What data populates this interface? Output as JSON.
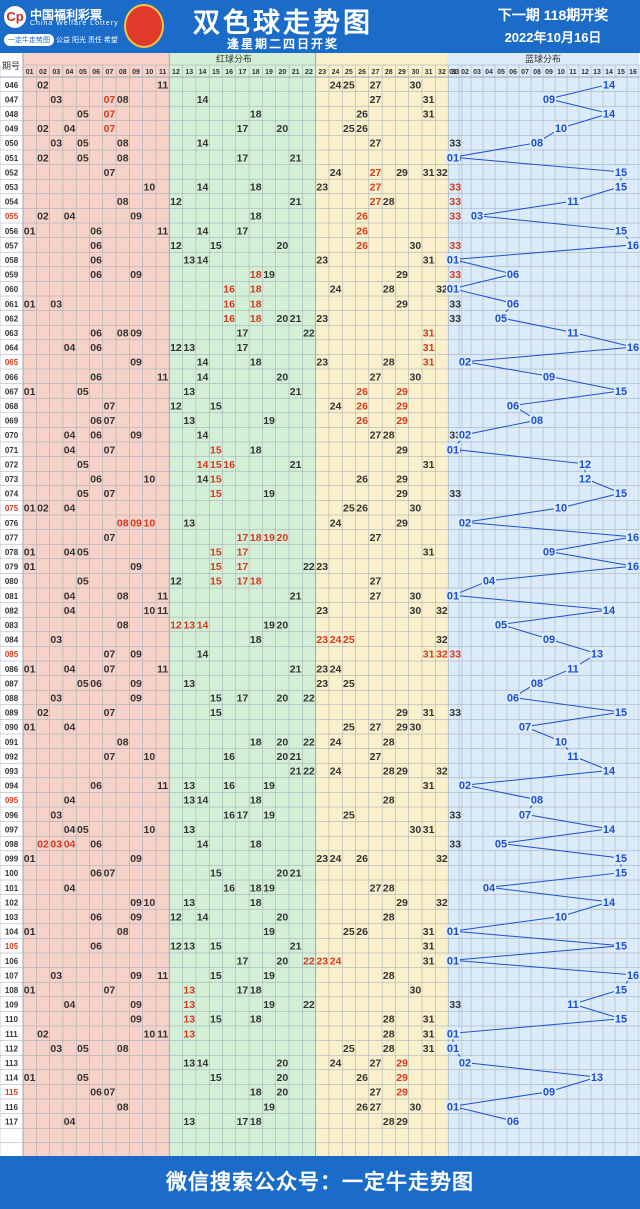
{
  "header": {
    "brand": "中国福利彩票",
    "brand_en": "China Welfare Lottery",
    "badge": "一定牛走势图",
    "slogan": "公益 阳光 责任 希望",
    "title": "双色球走势图",
    "subtitle": "逢星期二四日开奖",
    "next_draw": "下一期 118期开奖",
    "next_date": "2022年10月16日"
  },
  "footer": {
    "text": "微信搜索公众号：一定牛走势图"
  },
  "chart_data": {
    "type": "table",
    "column_header": "期号",
    "red_zone_label": "红球分布",
    "blue_zone_label": "蓝球分布",
    "red_numbers": [
      "01",
      "02",
      "03",
      "04",
      "05",
      "06",
      "07",
      "08",
      "09",
      "10",
      "11",
      "12",
      "13",
      "14",
      "15",
      "16",
      "17",
      "18",
      "19",
      "20",
      "21",
      "22",
      "23",
      "24",
      "25",
      "26",
      "27",
      "28",
      "29",
      "30",
      "31",
      "32",
      "33"
    ],
    "blue_numbers": [
      "01",
      "02",
      "03",
      "04",
      "05",
      "06",
      "07",
      "08",
      "09",
      "10",
      "11",
      "12",
      "13",
      "14",
      "15",
      "16"
    ],
    "colors": {
      "zone1": "#f7d2c8",
      "zone2": "#d3efd6",
      "zone3": "#fbf0cc",
      "blue_zone": "#dcebfa",
      "red_ball": "#333333",
      "highlight": "#d6391e",
      "blue_ball": "#1d4fd6",
      "line": "#1d4fd6",
      "grid": "#9aa8b5"
    },
    "rows": [
      {
        "issue": "046",
        "red": [
          2,
          11,
          24,
          25,
          27,
          30
        ],
        "blue": 14
      },
      {
        "issue": "047",
        "red": [
          3,
          7,
          8,
          14,
          27,
          31
        ],
        "blue": 9
      },
      {
        "issue": "048",
        "red": [
          5,
          7,
          18,
          26,
          31
        ],
        "blue": 14
      },
      {
        "issue": "049",
        "red": [
          2,
          4,
          7,
          17,
          20,
          25,
          26
        ],
        "blue": 10
      },
      {
        "issue": "050",
        "red": [
          3,
          5,
          8,
          14,
          27,
          33
        ],
        "blue": 8
      },
      {
        "issue": "051",
        "red": [
          2,
          5,
          8,
          17,
          21,
          33
        ],
        "blue": 1
      },
      {
        "issue": "052",
        "red": [
          7,
          24,
          27,
          29,
          31,
          32
        ],
        "blue": 15
      },
      {
        "issue": "053",
        "red": [
          10,
          14,
          18,
          23,
          27,
          33
        ],
        "blue": 15
      },
      {
        "issue": "054",
        "red": [
          8,
          12,
          21,
          27,
          28,
          33
        ],
        "blue": 11
      },
      {
        "issue": "055",
        "red": [
          2,
          4,
          9,
          18,
          26,
          33
        ],
        "blue": 3
      },
      {
        "issue": "056",
        "red": [
          1,
          6,
          11,
          14,
          17,
          26
        ],
        "blue": 15
      },
      {
        "issue": "057",
        "red": [
          6,
          12,
          15,
          20,
          26,
          30,
          33
        ],
        "blue": 16
      },
      {
        "issue": "058",
        "red": [
          6,
          13,
          14,
          23,
          31,
          33
        ],
        "blue": 1
      },
      {
        "issue": "059",
        "red": [
          6,
          9,
          18,
          19,
          29,
          33
        ],
        "blue": 6
      },
      {
        "issue": "060",
        "red": [
          16,
          18,
          24,
          28,
          32
        ],
        "blue": 1
      },
      {
        "issue": "061",
        "red": [
          1,
          3,
          16,
          18,
          29,
          33
        ],
        "blue": 6
      },
      {
        "issue": "062",
        "red": [
          16,
          18,
          20,
          21,
          23,
          33
        ],
        "blue": 5
      },
      {
        "issue": "063",
        "red": [
          6,
          8,
          9,
          17,
          22,
          31
        ],
        "blue": 11
      },
      {
        "issue": "064",
        "red": [
          4,
          6,
          12,
          13,
          17,
          31
        ],
        "blue": 16
      },
      {
        "issue": "065",
        "red": [
          9,
          14,
          18,
          23,
          28,
          31
        ],
        "blue": 2
      },
      {
        "issue": "066",
        "red": [
          6,
          11,
          14,
          20,
          27,
          30
        ],
        "blue": 9
      },
      {
        "issue": "067",
        "red": [
          1,
          5,
          13,
          21,
          26,
          29
        ],
        "blue": 15
      },
      {
        "issue": "068",
        "red": [
          7,
          12,
          15,
          24,
          26,
          29
        ],
        "blue": 6
      },
      {
        "issue": "069",
        "red": [
          6,
          7,
          13,
          19,
          26,
          29
        ],
        "blue": 8
      },
      {
        "issue": "070",
        "red": [
          4,
          6,
          9,
          14,
          27,
          28,
          33
        ],
        "blue": 2
      },
      {
        "issue": "071",
        "red": [
          4,
          7,
          15,
          18,
          29,
          33
        ],
        "blue": 1
      },
      {
        "issue": "072",
        "red": [
          5,
          14,
          15,
          16,
          21,
          31
        ],
        "blue": 12
      },
      {
        "issue": "073",
        "red": [
          6,
          10,
          14,
          15,
          26,
          29
        ],
        "blue": 12
      },
      {
        "issue": "074",
        "red": [
          5,
          7,
          15,
          19,
          29,
          33
        ],
        "blue": 15
      },
      {
        "issue": "075",
        "red": [
          1,
          2,
          4,
          25,
          26,
          30
        ],
        "blue": 10
      },
      {
        "issue": "076",
        "red": [
          8,
          9,
          10,
          13,
          24,
          29
        ],
        "blue": 2
      },
      {
        "issue": "077",
        "red": [
          7,
          17,
          18,
          19,
          20,
          27
        ],
        "blue": 16
      },
      {
        "issue": "078",
        "red": [
          1,
          4,
          5,
          15,
          17,
          31
        ],
        "blue": 9
      },
      {
        "issue": "079",
        "red": [
          1,
          9,
          15,
          17,
          22,
          23
        ],
        "blue": 16
      },
      {
        "issue": "080",
        "red": [
          5,
          12,
          15,
          17,
          18,
          27
        ],
        "blue": 4
      },
      {
        "issue": "081",
        "red": [
          4,
          8,
          11,
          21,
          27,
          30
        ],
        "blue": 1
      },
      {
        "issue": "082",
        "red": [
          4,
          10,
          11,
          23,
          30,
          32
        ],
        "blue": 14
      },
      {
        "issue": "083",
        "red": [
          8,
          12,
          13,
          14,
          19,
          20
        ],
        "blue": 5
      },
      {
        "issue": "084",
        "red": [
          3,
          18,
          23,
          24,
          25,
          32
        ],
        "blue": 9
      },
      {
        "issue": "085",
        "red": [
          7,
          9,
          14,
          31,
          32,
          33
        ],
        "blue": 13
      },
      {
        "issue": "086",
        "red": [
          1,
          4,
          7,
          11,
          21,
          23,
          24
        ],
        "blue": 11
      },
      {
        "issue": "087",
        "red": [
          5,
          6,
          9,
          13,
          23,
          25
        ],
        "blue": 8
      },
      {
        "issue": "088",
        "red": [
          3,
          9,
          15,
          17,
          20,
          22
        ],
        "blue": 6
      },
      {
        "issue": "089",
        "red": [
          2,
          7,
          15,
          29,
          31,
          33
        ],
        "blue": 15
      },
      {
        "issue": "090",
        "red": [
          1,
          4,
          25,
          27,
          29,
          30
        ],
        "blue": 7
      },
      {
        "issue": "091",
        "red": [
          8,
          18,
          20,
          22,
          24,
          28
        ],
        "blue": 10
      },
      {
        "issue": "092",
        "red": [
          7,
          10,
          16,
          20,
          21,
          27
        ],
        "blue": 11
      },
      {
        "issue": "093",
        "red": [
          21,
          22,
          24,
          28,
          29,
          32
        ],
        "blue": 14
      },
      {
        "issue": "094",
        "red": [
          6,
          11,
          13,
          16,
          19,
          31
        ],
        "blue": 2
      },
      {
        "issue": "095",
        "red": [
          4,
          13,
          14,
          18,
          28
        ],
        "blue": 8
      },
      {
        "issue": "096",
        "red": [
          3,
          16,
          17,
          19,
          25,
          33
        ],
        "blue": 7
      },
      {
        "issue": "097",
        "red": [
          4,
          5,
          10,
          13,
          30,
          31
        ],
        "blue": 14
      },
      {
        "issue": "098",
        "red": [
          2,
          3,
          4,
          6,
          14,
          18,
          33
        ],
        "blue": 5
      },
      {
        "issue": "099",
        "red": [
          1,
          9,
          23,
          24,
          26,
          32
        ],
        "blue": 15
      },
      {
        "issue": "100",
        "red": [
          6,
          7,
          15,
          20,
          21
        ],
        "blue": 15
      },
      {
        "issue": "101",
        "red": [
          4,
          16,
          18,
          19,
          27,
          28
        ],
        "blue": 4
      },
      {
        "issue": "102",
        "red": [
          9,
          10,
          13,
          18,
          29,
          32
        ],
        "blue": 14
      },
      {
        "issue": "103",
        "red": [
          6,
          9,
          12,
          14,
          20,
          28
        ],
        "blue": 10
      },
      {
        "issue": "104",
        "red": [
          1,
          8,
          19,
          25,
          26,
          31
        ],
        "blue": 1
      },
      {
        "issue": "105",
        "red": [
          6,
          12,
          13,
          15,
          21,
          31
        ],
        "blue": 15
      },
      {
        "issue": "106",
        "red": [
          17,
          20,
          22,
          23,
          24,
          31
        ],
        "blue": 1
      },
      {
        "issue": "107",
        "red": [
          3,
          9,
          11,
          15,
          19,
          28
        ],
        "blue": 16
      },
      {
        "issue": "108",
        "red": [
          1,
          7,
          13,
          17,
          18,
          30
        ],
        "blue": 15
      },
      {
        "issue": "109",
        "red": [
          4,
          9,
          13,
          19,
          22,
          33
        ],
        "blue": 11
      },
      {
        "issue": "110",
        "red": [
          9,
          13,
          15,
          18,
          28,
          31
        ],
        "blue": 15
      },
      {
        "issue": "111",
        "red": [
          2,
          10,
          11,
          13,
          28,
          31
        ],
        "blue": 1
      },
      {
        "issue": "112",
        "red": [
          3,
          5,
          8,
          25,
          28,
          31
        ],
        "blue": 1
      },
      {
        "issue": "113",
        "red": [
          13,
          14,
          20,
          24,
          27,
          29
        ],
        "blue": 2
      },
      {
        "issue": "114",
        "red": [
          1,
          5,
          15,
          20,
          26,
          29
        ],
        "blue": 13
      },
      {
        "issue": "115",
        "red": [
          6,
          7,
          18,
          20,
          27,
          29
        ],
        "blue": 9
      },
      {
        "issue": "116",
        "red": [
          8,
          19,
          26,
          27,
          30,
          33
        ],
        "blue": 1
      },
      {
        "issue": "117",
        "red": [
          4,
          13,
          17,
          18,
          28,
          29
        ],
        "blue": 6
      }
    ],
    "highlighted_red": {
      "047": [
        7
      ],
      "048": [
        7
      ],
      "049": [
        7
      ],
      "052": [
        27
      ],
      "053": [
        27,
        33
      ],
      "054": [
        27,
        33
      ],
      "055": [
        26,
        33
      ],
      "056": [
        26
      ],
      "057": [
        26,
        33
      ],
      "058": [
        33
      ],
      "059": [
        18,
        33
      ],
      "060": [
        16,
        18
      ],
      "061": [
        16,
        18
      ],
      "062": [
        16,
        18
      ],
      "063": [
        31
      ],
      "064": [
        31
      ],
      "065": [
        31
      ],
      "067": [
        26,
        29
      ],
      "068": [
        26,
        29
      ],
      "069": [
        26,
        29
      ],
      "071": [
        15
      ],
      "072": [
        14,
        15,
        16
      ],
      "073": [
        15
      ],
      "074": [
        15
      ],
      "076": [
        8,
        9,
        10
      ],
      "077": [
        17,
        18,
        19,
        20
      ],
      "078": [
        15,
        17
      ],
      "079": [
        15,
        17
      ],
      "080": [
        15,
        17,
        18
      ],
      "083": [
        12,
        13,
        14
      ],
      "084": [
        23,
        24,
        25
      ],
      "085": [
        31,
        32,
        33
      ],
      "098": [
        2,
        3,
        4
      ],
      "106": [
        22,
        23,
        24
      ],
      "108": [
        13
      ],
      "109": [
        13
      ],
      "110": [
        13
      ],
      "111": [
        13
      ],
      "113": [
        29
      ],
      "114": [
        29
      ],
      "115": [
        29
      ]
    },
    "highlighted_issues": [
      "055",
      "065",
      "075",
      "085",
      "095",
      "105",
      "115"
    ]
  }
}
